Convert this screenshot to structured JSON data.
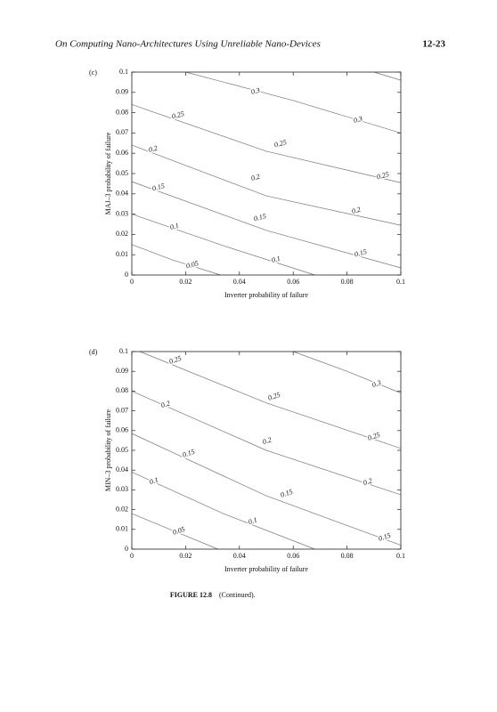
{
  "header": {
    "title": "On Computing Nano-Architectures Using Unreliable Nano-Devices",
    "page": "12-23"
  },
  "chart_data": [
    {
      "type": "contour",
      "panel": "(c)",
      "xlabel": "Inverter probability of failure",
      "ylabel": "MAJ–3 probability of failure",
      "xlim": [
        0,
        0.1
      ],
      "ylim": [
        0,
        0.1
      ],
      "xticks": [
        0,
        0.02,
        0.04,
        0.06,
        0.08,
        0.1
      ],
      "yticks": [
        0,
        0.01,
        0.02,
        0.03,
        0.04,
        0.05,
        0.06,
        0.07,
        0.08,
        0.09,
        0.1
      ],
      "contours": [
        {
          "level": 0.05,
          "x": [
            0,
            0.015,
            0.033
          ],
          "values": [
            0.015,
            0.0075,
            0
          ]
        },
        {
          "level": 0.1,
          "x": [
            0,
            0.035,
            0.068
          ],
          "values": [
            0.03,
            0.014,
            0
          ]
        },
        {
          "level": 0.15,
          "x": [
            0,
            0.05,
            0.1
          ],
          "values": [
            0.046,
            0.022,
            0.0035
          ]
        },
        {
          "level": 0.2,
          "x": [
            0,
            0.05,
            0.1
          ],
          "values": [
            0.064,
            0.039,
            0.0245
          ]
        },
        {
          "level": 0.25,
          "x": [
            0,
            0.05,
            0.1
          ],
          "values": [
            0.084,
            0.061,
            0.0455
          ]
        },
        {
          "level": 0.3,
          "x": [
            0.02,
            0.06,
            0.1
          ],
          "values": [
            0.1,
            0.086,
            0.07
          ]
        },
        {
          "x": [
            0.09,
            0.1
          ],
          "values": [
            0.1,
            0.096
          ]
        }
      ]
    },
    {
      "type": "contour",
      "panel": "(d)",
      "xlabel": "Inverter probability of failure",
      "ylabel": "MIN–3 probability of failure",
      "xlim": [
        0,
        0.1
      ],
      "ylim": [
        0,
        0.1
      ],
      "xticks": [
        0,
        0.02,
        0.04,
        0.06,
        0.08,
        0.1
      ],
      "yticks": [
        0,
        0.01,
        0.02,
        0.03,
        0.04,
        0.05,
        0.06,
        0.07,
        0.08,
        0.09,
        0.1
      ],
      "contours": [
        {
          "level": 0.05,
          "x": [
            0,
            0.016,
            0.032
          ],
          "values": [
            0.018,
            0.009,
            0
          ]
        },
        {
          "level": 0.1,
          "x": [
            0,
            0.034,
            0.068
          ],
          "values": [
            0.039,
            0.018,
            0
          ]
        },
        {
          "level": 0.15,
          "x": [
            0,
            0.05,
            0.1
          ],
          "values": [
            0.0585,
            0.027,
            0.002
          ]
        },
        {
          "level": 0.2,
          "x": [
            0,
            0.05,
            0.1
          ],
          "values": [
            0.08,
            0.05,
            0.0275
          ]
        },
        {
          "level": 0.25,
          "x": [
            0.003,
            0.05,
            0.1
          ],
          "values": [
            0.1,
            0.074,
            0.051
          ]
        },
        {
          "level": 0.3,
          "x": [
            0.06,
            0.08,
            0.1
          ],
          "values": [
            0.1,
            0.09,
            0.079
          ]
        }
      ]
    }
  ],
  "caption": {
    "label": "FIGURE 12.8",
    "text": "(Continued)."
  }
}
